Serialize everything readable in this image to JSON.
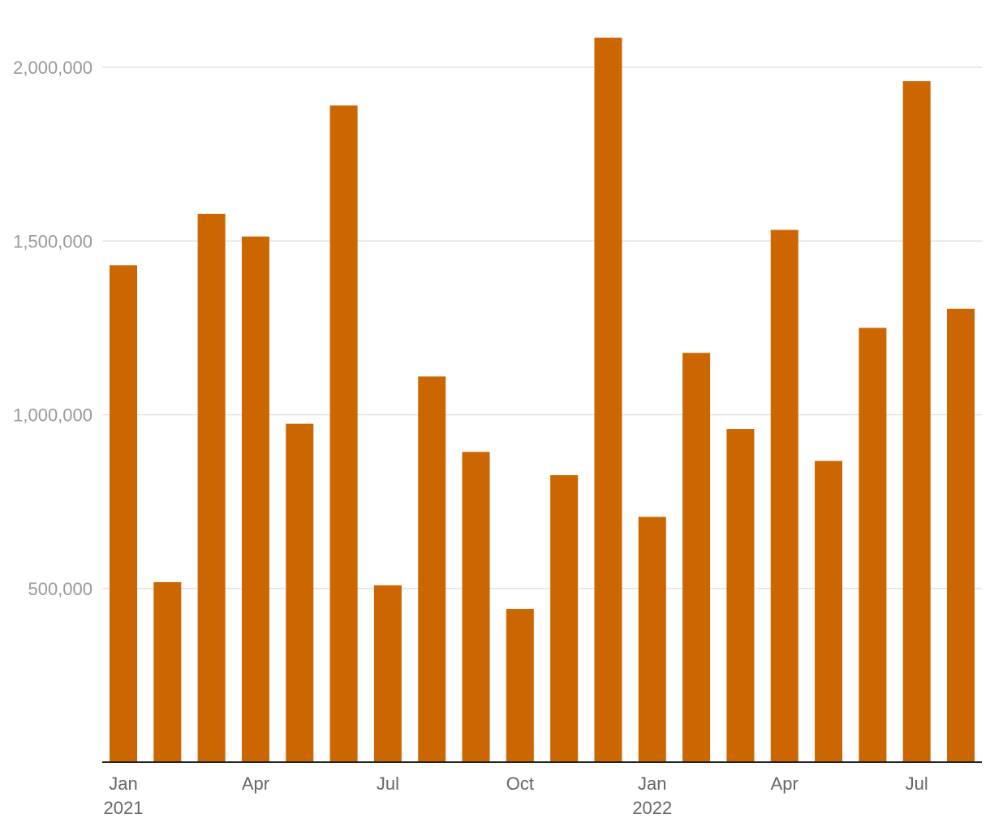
{
  "chart_data": {
    "type": "bar",
    "categories": [
      "Jan 2021",
      "Feb 2021",
      "Mar 2021",
      "Apr 2021",
      "May 2021",
      "Jun 2021",
      "Jul 2021",
      "Aug 2021",
      "Sep 2021",
      "Oct 2021",
      "Nov 2021",
      "Dec 2021",
      "Jan 2022",
      "Feb 2022",
      "Mar 2022",
      "Apr 2022",
      "May 2022",
      "Jun 2022",
      "Jul 2022",
      "Aug 2022"
    ],
    "values": [
      1430000,
      518000,
      1578000,
      1513000,
      974000,
      1890000,
      509000,
      1110000,
      893000,
      441000,
      826000,
      2085000,
      706000,
      1178000,
      959000,
      1532000,
      867000,
      1250000,
      1960000,
      1305000
    ],
    "ylim": [
      0,
      2000000
    ],
    "y_ticks": [
      {
        "value": 500000,
        "label": "500,000"
      },
      {
        "value": 1000000,
        "label": "1,000,000"
      },
      {
        "value": 1500000,
        "label": "1,500,000"
      },
      {
        "value": 2000000,
        "label": "2,000,000"
      }
    ],
    "x_ticks": [
      {
        "index": 0,
        "label": "Jan",
        "sublabel": "2021"
      },
      {
        "index": 3,
        "label": "Apr",
        "sublabel": ""
      },
      {
        "index": 6,
        "label": "Jul",
        "sublabel": ""
      },
      {
        "index": 9,
        "label": "Oct",
        "sublabel": ""
      },
      {
        "index": 12,
        "label": "Jan",
        "sublabel": "2022"
      },
      {
        "index": 15,
        "label": "Apr",
        "sublabel": ""
      },
      {
        "index": 18,
        "label": "Jul",
        "sublabel": ""
      }
    ],
    "bar_color": "#cc6600",
    "grid": true,
    "legend": "none",
    "title": "",
    "xlabel": "",
    "ylabel": ""
  }
}
